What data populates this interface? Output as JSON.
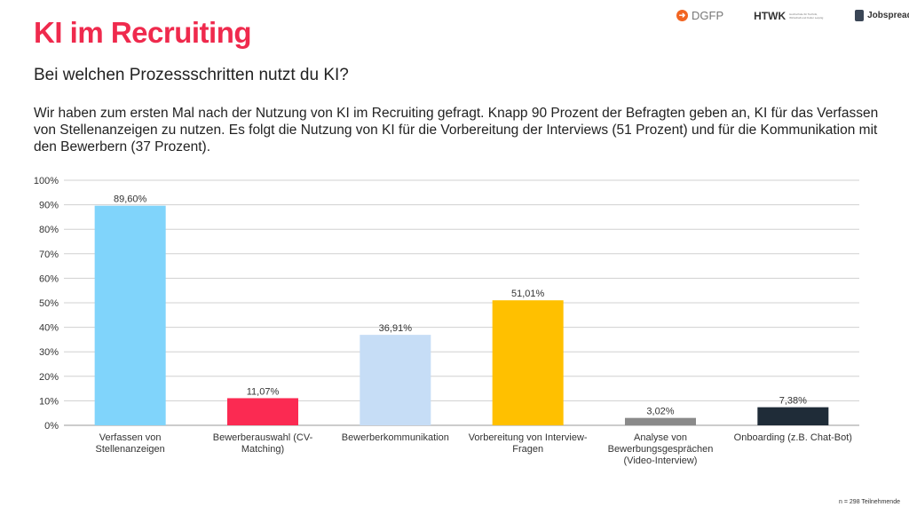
{
  "header": {
    "title": "KI im Recruiting",
    "subtitle": "Bei welchen Prozessschritten nutzt du KI?",
    "description": "Wir haben zum ersten Mal nach der Nutzung von KI im Recruiting gefragt. Knapp 90 Prozent der Befragten geben an, KI für das Verfassen von Stellenanzeigen zu nutzen. Es folgt die Nutzung von KI für die Vorbereitung der Interviews (51 Prozent) und für die Kommunikation mit den Bewerbern (37 Prozent)."
  },
  "logos": {
    "dgfp": "DGFP",
    "htwk": "HTWK",
    "htwk_sub": "Hochschule für Technik, Wirtschaft und Kultur Leipzig",
    "jobspreader": "Jobspreader"
  },
  "footer": {
    "note": "n = 298 Teilnehmende"
  },
  "chart_data": {
    "type": "bar",
    "categories": [
      "Verfassen von Stellenanzeigen",
      "Bewerberauswahl (CV-Matching)",
      "Bewerberkommunikation",
      "Vorbereitung von Interview-Fragen",
      "Analyse von Bewerbungsgesprächen (Video-Interview)",
      "Onboarding (z.B. Chat-Bot)"
    ],
    "values": [
      89.6,
      11.07,
      36.91,
      51.01,
      3.02,
      7.38
    ],
    "data_labels": [
      "89,60%",
      "11,07%",
      "36,91%",
      "51,01%",
      "3,02%",
      "7,38%"
    ],
    "colors": [
      "#80d4fb",
      "#fb2a52",
      "#c6ddf6",
      "#ffc000",
      "#8a8a8a",
      "#1f2c38"
    ],
    "yticks": [
      "0%",
      "10%",
      "20%",
      "30%",
      "40%",
      "50%",
      "60%",
      "70%",
      "80%",
      "90%",
      "100%"
    ],
    "ylim": [
      0,
      100
    ],
    "grid": true,
    "legend": "none"
  }
}
